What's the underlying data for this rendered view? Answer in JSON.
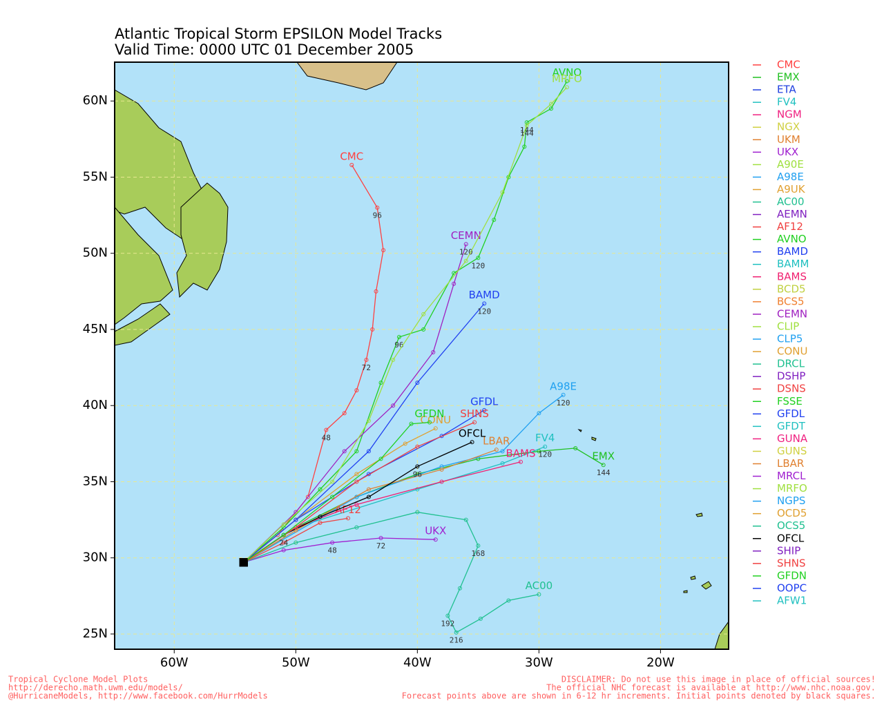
{
  "title": [
    "Atlantic Tropical Storm EPSILON Model Tracks",
    "Valid Time: 0000 UTC 01 December 2005"
  ],
  "map": {
    "type": "track-map",
    "xlim": [
      -64.9,
      -14.4
    ],
    "ylim": [
      24,
      62.55
    ],
    "grid": true,
    "xticks": [
      {
        "value": -60,
        "label": "60W"
      },
      {
        "value": -50,
        "label": "50W"
      },
      {
        "value": -40,
        "label": "40W"
      },
      {
        "value": -30,
        "label": "30W"
      },
      {
        "value": -20,
        "label": "20W"
      }
    ],
    "yticks": [
      {
        "value": 25,
        "label": "25N"
      },
      {
        "value": 30,
        "label": "30N"
      },
      {
        "value": 35,
        "label": "35N"
      },
      {
        "value": 40,
        "label": "40N"
      },
      {
        "value": 45,
        "label": "45N"
      },
      {
        "value": 50,
        "label": "50N"
      },
      {
        "value": 55,
        "label": "55N"
      },
      {
        "value": 60,
        "label": "60N"
      }
    ]
  },
  "models": [
    {
      "name": "CMC",
      "color": "#ff4040",
      "lon": [
        -54.3,
        -51.5,
        -49,
        -47.5,
        -46,
        -45,
        -44.2,
        -43.7,
        -43.4,
        -42.8,
        -43.3,
        -45.4
      ],
      "lat": [
        29.7,
        31.5,
        34,
        38.4,
        39.5,
        41,
        43,
        45,
        47.5,
        50.2,
        53,
        55.8
      ],
      "hours": [
        null,
        null,
        null,
        48,
        null,
        null,
        72,
        null,
        null,
        null,
        96,
        null
      ]
    },
    {
      "name": "EMX",
      "color": "#20c020",
      "lon": [
        -54.3,
        -50,
        -45,
        -40,
        -35,
        -30,
        -27,
        -24.7
      ],
      "lat": [
        29.7,
        32,
        34,
        35.5,
        36.5,
        37,
        37.2,
        36.1
      ],
      "hours": [
        null,
        null,
        null,
        null,
        null,
        null,
        null,
        144
      ]
    },
    {
      "name": "ETA",
      "color": "#2040e0"
    },
    {
      "name": "FV4",
      "color": "#20c0c0",
      "lon": [
        -54.3,
        -50,
        -40,
        -33,
        -29.5
      ],
      "lat": [
        29.7,
        32,
        34.5,
        36.2,
        37.3
      ],
      "hours": [
        null,
        null,
        null,
        null,
        120
      ]
    },
    {
      "name": "NGM",
      "color": "#f02080"
    },
    {
      "name": "NGX",
      "color": "#d0d040"
    },
    {
      "name": "UKM",
      "color": "#e08030"
    },
    {
      "name": "UKX",
      "color": "#a020d0",
      "lon": [
        -54.3,
        -51,
        -47,
        -43,
        -38.5
      ],
      "lat": [
        29.7,
        30.5,
        31,
        31.3,
        31.2
      ],
      "hours": [
        null,
        null,
        48,
        72,
        null
      ]
    },
    {
      "name": "A90E",
      "color": "#a0e040"
    },
    {
      "name": "A98E",
      "color": "#20a0f0",
      "lon": [
        -54.3,
        -45,
        -38,
        -33,
        -30,
        -28
      ],
      "lat": [
        29.7,
        34,
        36,
        37,
        39.5,
        40.7
      ],
      "hours": [
        null,
        null,
        null,
        null,
        null,
        120
      ]
    },
    {
      "name": "A9UK",
      "color": "#e0a030"
    },
    {
      "name": "AC00",
      "color": "#20c090",
      "lon": [
        -54.3,
        -50,
        -45,
        -40,
        -36,
        -35,
        -36.5,
        -37.5,
        -36.8,
        -34.8,
        -32.5,
        -30
      ],
      "lat": [
        29.7,
        31,
        32,
        33,
        32.5,
        30.8,
        28,
        26.2,
        25.1,
        26,
        27.2,
        27.6
      ],
      "hours": [
        null,
        null,
        null,
        null,
        null,
        168,
        null,
        192,
        216,
        null,
        null,
        null
      ]
    },
    {
      "name": "AEMN",
      "color": "#8020c0"
    },
    {
      "name": "AF12",
      "color": "#f04040",
      "lon": [
        -54.3,
        -51,
        -48,
        -45.7
      ],
      "lat": [
        29.7,
        31,
        32.3,
        32.6
      ],
      "hours": [
        null,
        null,
        null,
        null
      ]
    },
    {
      "name": "AVNO",
      "color": "#20d020",
      "lon": [
        -54.3,
        -51,
        -48,
        -45,
        -43,
        -41.5,
        -39.5,
        -37,
        -35,
        -33.7,
        -32.5,
        -31.2,
        -31,
        -29,
        -27.7
      ],
      "lat": [
        29.7,
        32,
        34.5,
        37,
        41.5,
        44.5,
        45,
        48.7,
        49.7,
        52.2,
        55,
        57,
        58.6,
        59.5,
        61.3
      ],
      "hours": [
        null,
        null,
        null,
        null,
        null,
        96,
        null,
        null,
        120,
        null,
        null,
        null,
        144,
        null,
        null
      ]
    },
    {
      "name": "BAMD",
      "color": "#2040f0",
      "lon": [
        -54.3,
        -50,
        -44,
        -40,
        -34.5
      ],
      "lat": [
        29.7,
        32.5,
        37,
        41.5,
        46.7
      ],
      "hours": [
        null,
        null,
        null,
        null,
        120
      ]
    },
    {
      "name": "BAMM",
      "color": "#20c0c0"
    },
    {
      "name": "BAMS",
      "color": "#f02070",
      "lon": [
        -54.3,
        -50,
        -45,
        -38,
        -31.5
      ],
      "lat": [
        29.7,
        32,
        33.5,
        35,
        36.3
      ],
      "hours": [
        null,
        null,
        null,
        null,
        null
      ]
    },
    {
      "name": "BCD5",
      "color": "#c0d040"
    },
    {
      "name": "BCS5",
      "color": "#f08030"
    },
    {
      "name": "CEMN",
      "color": "#a020c0",
      "lon": [
        -54.3,
        -50,
        -46,
        -42,
        -38.7,
        -37,
        -36
      ],
      "lat": [
        29.7,
        33,
        37,
        40,
        43.5,
        48,
        50.6
      ],
      "hours": [
        null,
        null,
        null,
        null,
        null,
        null,
        120
      ]
    },
    {
      "name": "CLIP",
      "color": "#a0e040"
    },
    {
      "name": "CLP5",
      "color": "#20a0f0"
    },
    {
      "name": "CONU",
      "color": "#e0a030",
      "lon": [
        -54.3,
        -50,
        -45,
        -41,
        -38.5
      ],
      "lat": [
        29.7,
        32.5,
        35.5,
        37.5,
        38.5
      ],
      "hours": [
        null,
        null,
        null,
        null,
        null
      ]
    },
    {
      "name": "DRCL",
      "color": "#20c090"
    },
    {
      "name": "DSHP",
      "color": "#8020c0"
    },
    {
      "name": "DSNS",
      "color": "#f04040"
    },
    {
      "name": "FSSE",
      "color": "#20d020"
    },
    {
      "name": "GFDL",
      "color": "#2040f0",
      "lon": [
        -54.3,
        -50,
        -44,
        -38,
        -34.5
      ],
      "lat": [
        29.7,
        32.5,
        35.5,
        38,
        39.7
      ],
      "hours": [
        null,
        null,
        null,
        null,
        null
      ]
    },
    {
      "name": "GFDT",
      "color": "#20c0c0"
    },
    {
      "name": "GUNA",
      "color": "#f02080"
    },
    {
      "name": "GUNS",
      "color": "#d0d040"
    },
    {
      "name": "LBAR",
      "color": "#e08030",
      "lon": [
        -54.3,
        -50,
        -44,
        -38,
        -33.5
      ],
      "lat": [
        29.7,
        31.8,
        34.5,
        35.8,
        37.1
      ],
      "hours": [
        null,
        null,
        null,
        null,
        null
      ]
    },
    {
      "name": "MRCL",
      "color": "#a020d0"
    },
    {
      "name": "MRFO",
      "color": "#a0e040",
      "lon": [
        -54.3,
        -51,
        -47,
        -44,
        -42,
        -39.5,
        -36,
        -33,
        -31,
        -29,
        -27.7
      ],
      "lat": [
        29.7,
        32.2,
        35,
        39,
        43,
        46,
        49.5,
        54,
        58.4,
        59.8,
        60.9
      ],
      "hours": [
        null,
        null,
        null,
        null,
        null,
        null,
        null,
        null,
        144,
        null,
        null
      ]
    },
    {
      "name": "NGPS",
      "color": "#20a0f0"
    },
    {
      "name": "OCD5",
      "color": "#e0a030"
    },
    {
      "name": "OCS5",
      "color": "#20c090"
    },
    {
      "name": "OFCL",
      "color": "#000000",
      "lon": [
        -54.3,
        -51,
        -48,
        -44,
        -40,
        -35.5
      ],
      "lat": [
        29.7,
        31.5,
        32.7,
        34,
        36,
        37.6
      ],
      "hours": [
        null,
        24,
        null,
        null,
        96,
        null
      ]
    },
    {
      "name": "SHIP",
      "color": "#8020c0"
    },
    {
      "name": "SHNS",
      "color": "#f04040",
      "lon": [
        -54.3,
        -50,
        -45,
        -40,
        -35.3
      ],
      "lat": [
        29.7,
        32,
        35,
        37.3,
        38.9
      ],
      "hours": [
        null,
        null,
        null,
        null,
        null
      ]
    },
    {
      "name": "GFDN",
      "color": "#20d020",
      "lon": [
        -54.3,
        -51,
        -47,
        -43,
        -40.5,
        -39
      ],
      "lat": [
        29.7,
        31.5,
        34,
        36.5,
        38.8,
        38.9
      ],
      "hours": [
        null,
        null,
        null,
        null,
        null,
        null
      ]
    },
    {
      "name": "OOPC",
      "color": "#2040f0"
    },
    {
      "name": "AFW1",
      "color": "#20c0c0"
    }
  ],
  "footer_left": [
    "Tropical Cyclone Model Plots",
    "http://derecho.math.uwm.edu/models/",
    "@HurricaneModels, http://www.facebook.com/HurrModels"
  ],
  "footer_right": [
    "DISCLAIMER: Do not use this image in place of official sources!",
    "The official NHC forecast is available at http://www.nhc.noaa.gov.",
    "Forecast points above are shown in 6-12 hr increments. Initial points denoted by black squares."
  ]
}
